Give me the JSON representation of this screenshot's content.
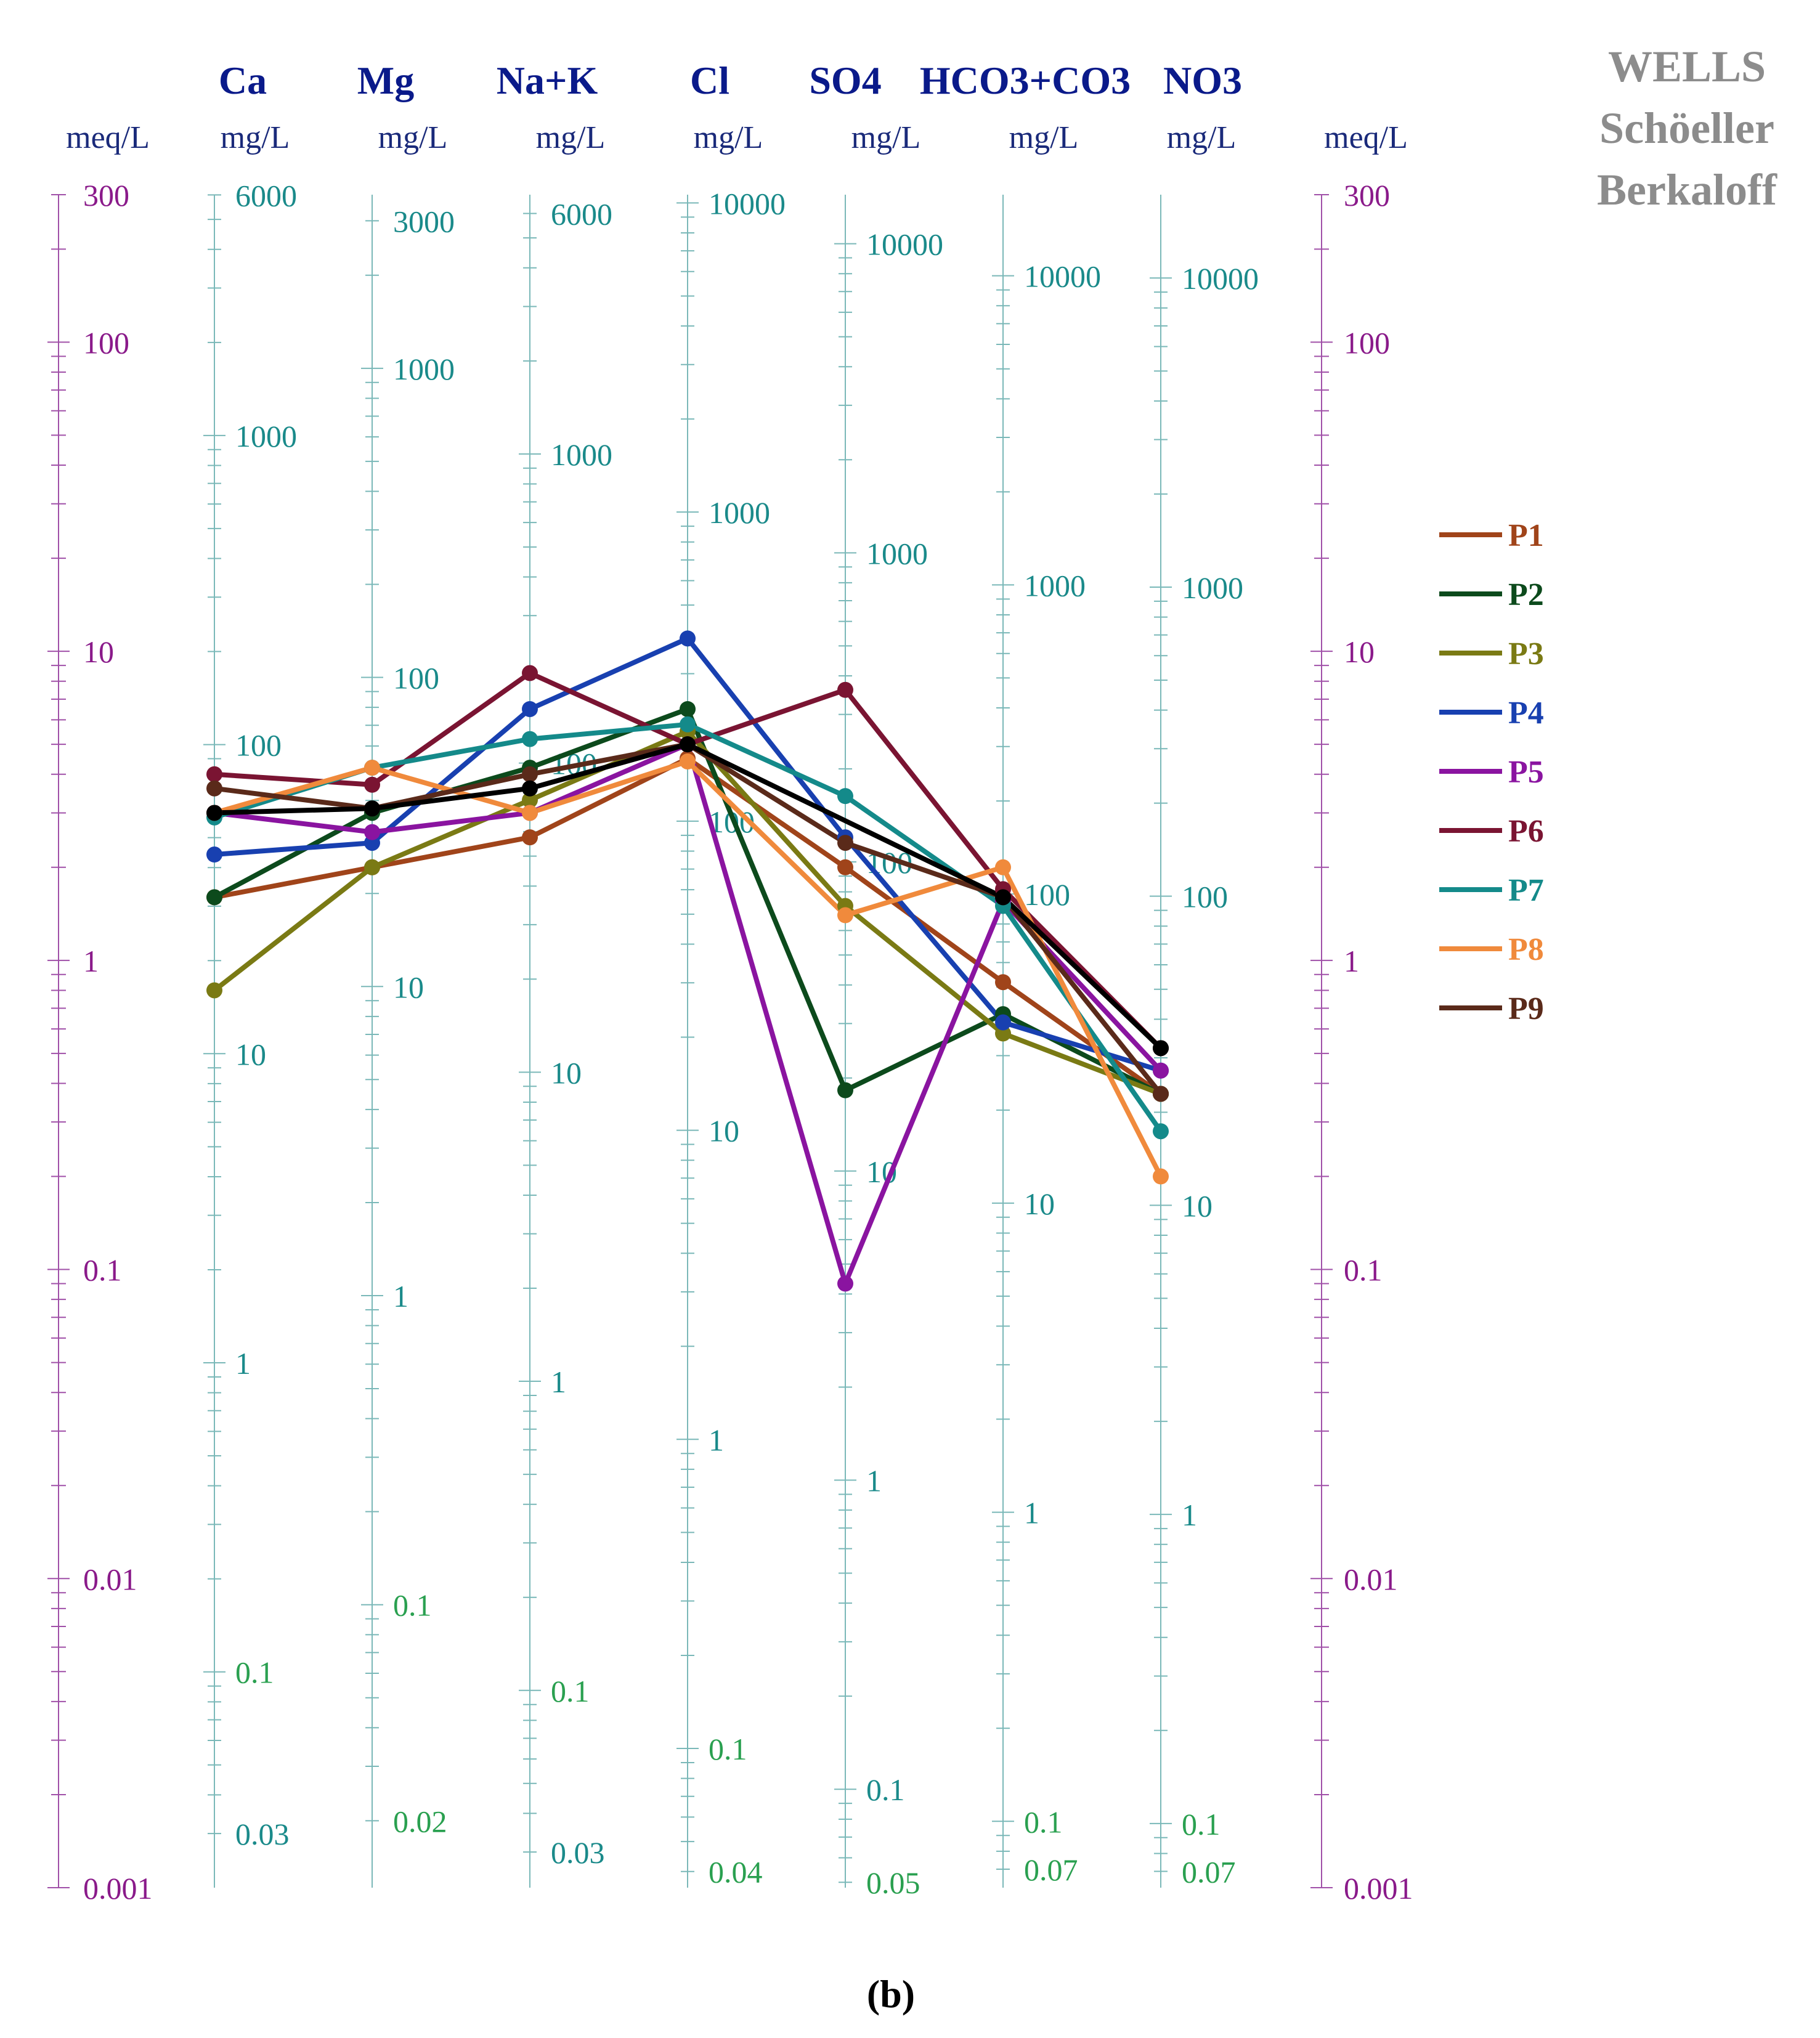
{
  "title_lines": [
    "WELLS",
    "Schöeller",
    "Berkaloff"
  ],
  "caption": "(b)",
  "colors": {
    "header": "#0a1a8a",
    "meq_axis": "#a050a8",
    "mg_axis": "#7ab8b8",
    "tick_label_teal": "#1a8a8a",
    "tick_label_green": "#2aa050",
    "meq_label": "#8a1a8a",
    "title": "#8c8c8c"
  },
  "chart_data": {
    "type": "line",
    "meq_unit": "meq/L",
    "meq_range": [
      0.001,
      300
    ],
    "meq_ticks": [
      "300",
      "100",
      "10",
      "1",
      "0.1",
      "0.01",
      "0.001"
    ],
    "ions": [
      {
        "name": "Ca",
        "unit": "mg/L",
        "eq_weight": 20.04,
        "labels": [
          {
            "t": "6000",
            "v": 6000,
            "g": false
          },
          {
            "t": "1000",
            "v": 1000,
            "g": false
          },
          {
            "t": "100",
            "v": 100,
            "g": false
          },
          {
            "t": "10",
            "v": 10,
            "g": false
          },
          {
            "t": "1",
            "v": 1,
            "g": false
          },
          {
            "t": "0.1",
            "v": 0.1,
            "g": true
          },
          {
            "t": "0.03",
            "v": 0.03,
            "g": false
          }
        ]
      },
      {
        "name": "Mg",
        "unit": "mg/L",
        "eq_weight": 12.15,
        "labels": [
          {
            "t": "3000",
            "v": 3000,
            "g": false
          },
          {
            "t": "1000",
            "v": 1000,
            "g": false
          },
          {
            "t": "100",
            "v": 100,
            "g": false
          },
          {
            "t": "10",
            "v": 10,
            "g": false
          },
          {
            "t": "1",
            "v": 1,
            "g": false
          },
          {
            "t": "0.1",
            "v": 0.1,
            "g": true
          },
          {
            "t": "0.02",
            "v": 0.02,
            "g": true
          }
        ]
      },
      {
        "name": "Na+K",
        "unit": "mg/L",
        "eq_weight": 23.0,
        "labels": [
          {
            "t": "6000",
            "v": 6000,
            "g": false
          },
          {
            "t": "1000",
            "v": 1000,
            "g": false
          },
          {
            "t": "100",
            "v": 100,
            "g": false
          },
          {
            "t": "10",
            "v": 10,
            "g": false
          },
          {
            "t": "1",
            "v": 1,
            "g": false
          },
          {
            "t": "0.1",
            "v": 0.1,
            "g": true
          },
          {
            "t": "0.03",
            "v": 0.03,
            "g": false
          }
        ]
      },
      {
        "name": "Cl",
        "unit": "mg/L",
        "eq_weight": 35.45,
        "labels": [
          {
            "t": "10000",
            "v": 10000,
            "g": false
          },
          {
            "t": "1000",
            "v": 1000,
            "g": false
          },
          {
            "t": "100",
            "v": 100,
            "g": false
          },
          {
            "t": "10",
            "v": 10,
            "g": false
          },
          {
            "t": "1",
            "v": 1,
            "g": false
          },
          {
            "t": "0.1",
            "v": 0.1,
            "g": true
          },
          {
            "t": "0.04",
            "v": 0.04,
            "g": true
          }
        ]
      },
      {
        "name": "SO4",
        "unit": "mg/L",
        "eq_weight": 48.03,
        "labels": [
          {
            "t": "10000",
            "v": 10000,
            "g": false
          },
          {
            "t": "1000",
            "v": 1000,
            "g": false
          },
          {
            "t": "100",
            "v": 100,
            "g": false
          },
          {
            "t": "10",
            "v": 10,
            "g": false
          },
          {
            "t": "1",
            "v": 1,
            "g": false
          },
          {
            "t": "0.1",
            "v": 0.1,
            "g": false
          },
          {
            "t": "0.05",
            "v": 0.05,
            "g": true
          }
        ]
      },
      {
        "name": "HCO3+CO3",
        "unit": "mg/L",
        "eq_weight": 61.0,
        "labels": [
          {
            "t": "10000",
            "v": 10000,
            "g": false
          },
          {
            "t": "1000",
            "v": 1000,
            "g": false
          },
          {
            "t": "100",
            "v": 100,
            "g": false
          },
          {
            "t": "10",
            "v": 10,
            "g": false
          },
          {
            "t": "1",
            "v": 1,
            "g": false
          },
          {
            "t": "0.1",
            "v": 0.1,
            "g": true
          },
          {
            "t": "0.07",
            "v": 0.07,
            "g": true
          }
        ]
      },
      {
        "name": "NO3",
        "unit": "mg/L",
        "eq_weight": 62.0,
        "labels": [
          {
            "t": "10000",
            "v": 10000,
            "g": false
          },
          {
            "t": "1000",
            "v": 1000,
            "g": false
          },
          {
            "t": "100",
            "v": 100,
            "g": false
          },
          {
            "t": "10",
            "v": 10,
            "g": false
          },
          {
            "t": "1",
            "v": 1,
            "g": false
          },
          {
            "t": "0.1",
            "v": 0.1,
            "g": true
          },
          {
            "t": "0.07",
            "v": 0.07,
            "g": true
          }
        ]
      }
    ],
    "series": [
      {
        "name": "P1",
        "color": "#a0441a",
        "values": [
          1.6,
          2.0,
          2.5,
          4.5,
          2.0,
          0.85,
          0.37
        ]
      },
      {
        "name": "P2",
        "color": "#0c4a1c",
        "values": [
          1.6,
          3.0,
          4.2,
          6.5,
          0.38,
          0.67,
          0.37
        ]
      },
      {
        "name": "P3",
        "color": "#7a7a14",
        "values": [
          0.8,
          2.0,
          3.3,
          5.5,
          1.5,
          0.58,
          0.37
        ]
      },
      {
        "name": "P4",
        "color": "#1840b0",
        "values": [
          2.2,
          2.4,
          6.5,
          11.0,
          2.5,
          0.63,
          0.44
        ]
      },
      {
        "name": "P5",
        "color": "#8a14a0",
        "values": [
          3.0,
          2.6,
          3.0,
          5.0,
          0.09,
          1.55,
          0.44
        ]
      },
      {
        "name": "P6",
        "color": "#7a1432",
        "values": [
          4.0,
          3.7,
          8.5,
          5.0,
          7.5,
          1.7,
          0.52
        ]
      },
      {
        "name": "P7",
        "color": "#148a8a",
        "values": [
          2.9,
          4.2,
          5.2,
          5.8,
          3.4,
          1.5,
          0.28
        ]
      },
      {
        "name": "P8",
        "color": "#f08a3c",
        "values": [
          3.0,
          4.2,
          3.0,
          4.4,
          1.4,
          2.0,
          0.2
        ]
      },
      {
        "name": "P9",
        "color": "#5a2a1a",
        "values": [
          3.6,
          3.1,
          4.0,
          5.0,
          2.4,
          1.6,
          0.37
        ]
      },
      {
        "name": "",
        "color": "#000000",
        "values": [
          3.0,
          3.1,
          3.6,
          5.0,
          null,
          1.6,
          0.52
        ]
      }
    ]
  }
}
